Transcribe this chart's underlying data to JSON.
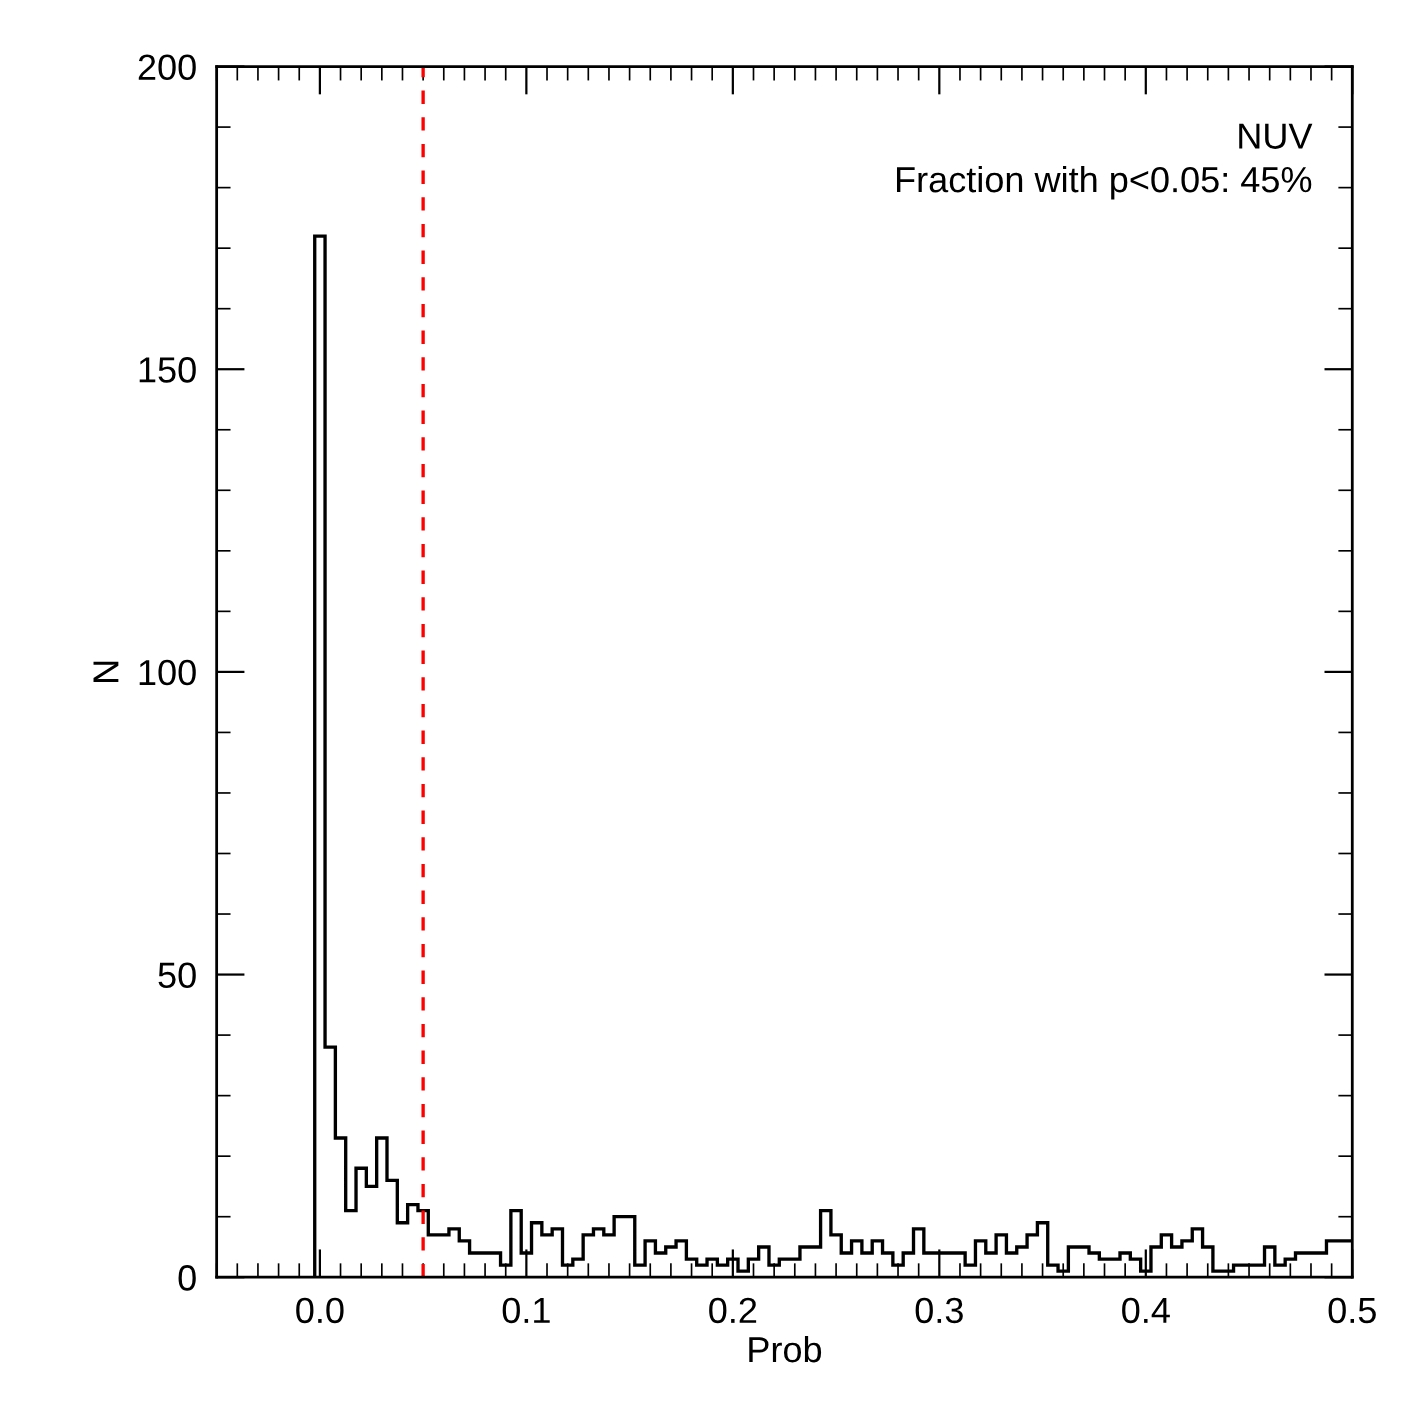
{
  "chart_data": {
    "type": "histogram",
    "xlabel": "Prob",
    "ylabel": "N",
    "bins": [
      -0.0025,
      0.0025,
      0.0075,
      0.0125,
      0.0175,
      0.0225,
      0.0275,
      0.0325,
      0.0375,
      0.0425,
      0.0475,
      0.0525,
      0.0575,
      0.0625,
      0.0675,
      0.0725,
      0.0775,
      0.0825,
      0.0875,
      0.0925,
      0.0975,
      0.1025,
      0.1075,
      0.1125,
      0.1175,
      0.1225,
      0.1275,
      0.1325,
      0.1375,
      0.1425,
      0.1475,
      0.1525,
      0.1575,
      0.1625,
      0.1675,
      0.1725,
      0.1775,
      0.1825,
      0.1875,
      0.1925,
      0.1975,
      0.2025,
      0.2075,
      0.2125,
      0.2175,
      0.2225,
      0.2275,
      0.2325,
      0.2375,
      0.2425,
      0.2475,
      0.2525,
      0.2575,
      0.2625,
      0.2675,
      0.2725,
      0.2775,
      0.2825,
      0.2875,
      0.2925,
      0.2975,
      0.3025,
      0.3075,
      0.3125,
      0.3175,
      0.3225,
      0.3275,
      0.3325,
      0.3375,
      0.3425,
      0.3475,
      0.3525,
      0.3575,
      0.3625,
      0.3675,
      0.3725,
      0.3775,
      0.3825,
      0.3875,
      0.3925,
      0.3975,
      0.4025,
      0.4075,
      0.4125,
      0.4175,
      0.4225,
      0.4275,
      0.4325,
      0.4375,
      0.4425,
      0.4475,
      0.4525,
      0.4575,
      0.4625,
      0.4675,
      0.4725,
      0.4775,
      0.4825,
      0.4875,
      0.4925,
      0.4975,
      0.5025
    ],
    "values": [
      172,
      38,
      23,
      11,
      18,
      15,
      23,
      16,
      9,
      12,
      11,
      7,
      7,
      8,
      6,
      4,
      4,
      4,
      2,
      11,
      4,
      9,
      7,
      8,
      2,
      3,
      7,
      8,
      7,
      10,
      10,
      2,
      6,
      4,
      5,
      6,
      3,
      2,
      3,
      2,
      3,
      1,
      3,
      5,
      2,
      3,
      3,
      5,
      5,
      11,
      7,
      4,
      6,
      4,
      6,
      4,
      2,
      4,
      8,
      4,
      4,
      4,
      4,
      2,
      6,
      4,
      7,
      4,
      5,
      7,
      9,
      2,
      1,
      5,
      5,
      4,
      3,
      3,
      4,
      3,
      1,
      5,
      7,
      5,
      6,
      8,
      5,
      1,
      1,
      2,
      2,
      2,
      5,
      2,
      3,
      4,
      4,
      4,
      6,
      6,
      6
    ],
    "color": "#000000",
    "xlim": [
      -0.05,
      0.5
    ],
    "ylim": [
      0,
      200
    ],
    "xticks": [
      {
        "value": 0.0,
        "label": "0.0"
      },
      {
        "value": 0.1,
        "label": "0.1"
      },
      {
        "value": 0.2,
        "label": "0.2"
      },
      {
        "value": 0.3,
        "label": "0.3"
      },
      {
        "value": 0.4,
        "label": "0.4"
      },
      {
        "value": 0.5,
        "label": "0.5"
      }
    ],
    "yticks": [
      0,
      50,
      100,
      150,
      200
    ],
    "ref_lines": [
      {
        "axis": "x",
        "value": 0.05,
        "color": "#ff0000",
        "line_style": "dashed"
      }
    ],
    "annotations": [
      "NUV",
      "Fraction with p<0.05: 45%"
    ],
    "grid": false
  }
}
